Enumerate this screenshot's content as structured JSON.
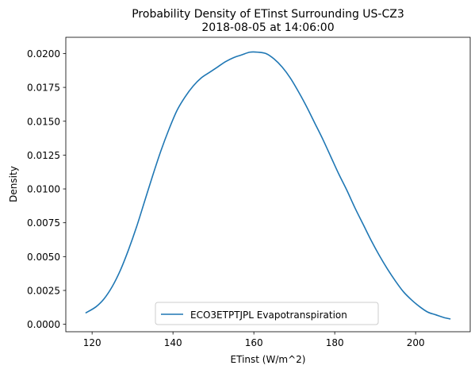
{
  "chart_data": {
    "type": "line",
    "title": "Probability Density of ETinst Surrounding US-CZ3",
    "subtitle": "2018-08-05 at 14:06:00",
    "xlabel": "ETinst (W/m^2)",
    "ylabel": "Density",
    "xlim": [
      113.5,
      213.5
    ],
    "ylim": [
      -0.00055,
      0.0212
    ],
    "x_ticks": [
      120,
      140,
      160,
      180,
      200
    ],
    "x_tick_labels": [
      "120",
      "140",
      "160",
      "180",
      "200"
    ],
    "y_ticks": [
      0.0,
      0.0025,
      0.005,
      0.0075,
      0.01,
      0.0125,
      0.015,
      0.0175,
      0.02
    ],
    "y_tick_labels": [
      "0.0000",
      "0.0025",
      "0.0050",
      "0.0075",
      "0.0100",
      "0.0125",
      "0.0150",
      "0.0175",
      "0.0200"
    ],
    "grid": false,
    "legend_position": "bottom-center",
    "series": [
      {
        "name": "ECO3ETPTJPL Evapotranspiration",
        "color": "#1f77b4",
        "x": [
          118.5,
          121,
          123,
          125,
          127,
          129,
          131,
          133,
          135,
          137,
          139,
          141,
          143,
          145,
          147,
          149,
          151,
          153,
          155,
          157,
          159,
          161,
          163,
          165,
          167,
          169,
          171,
          173,
          175,
          177,
          179,
          181,
          183,
          185,
          187,
          189,
          191,
          193,
          195,
          197,
          199,
          201,
          203,
          205,
          207,
          208.5
        ],
        "y": [
          0.00085,
          0.0013,
          0.0019,
          0.0028,
          0.004,
          0.0055,
          0.0072,
          0.0091,
          0.011,
          0.0128,
          0.0144,
          0.0158,
          0.0168,
          0.0176,
          0.0182,
          0.0186,
          0.019,
          0.0194,
          0.0197,
          0.0199,
          0.0201,
          0.0201,
          0.02,
          0.0196,
          0.019,
          0.0182,
          0.0172,
          0.0161,
          0.0149,
          0.0137,
          0.0124,
          0.0111,
          0.0099,
          0.0086,
          0.0074,
          0.0062,
          0.0051,
          0.0041,
          0.0032,
          0.0024,
          0.0018,
          0.0013,
          0.0009,
          0.0007,
          0.0005,
          0.0004
        ]
      }
    ]
  }
}
